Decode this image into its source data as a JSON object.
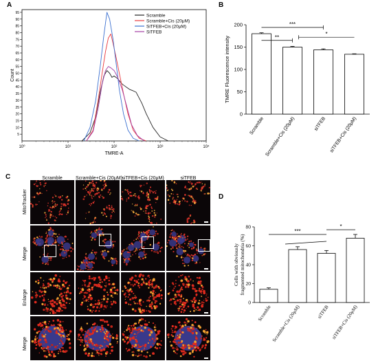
{
  "panels": {
    "A": "A",
    "B": "B",
    "C": "C",
    "D": "D"
  },
  "chart_data": [
    {
      "panel": "A",
      "type": "line",
      "xlabel": "TMRE-A",
      "ylabel": "Count",
      "xscale": "log",
      "xlim": [
        1,
        10000
      ],
      "ylim": [
        0,
        97
      ],
      "xticks": [
        "10⁰",
        "10¹",
        "10²",
        "10³",
        "10⁴"
      ],
      "yticks": [
        5,
        10,
        15,
        20,
        25,
        30,
        35,
        40,
        45,
        50,
        55,
        60,
        65,
        70,
        75,
        80,
        85,
        90,
        95
      ],
      "legend": "top-right",
      "series": [
        {
          "name": "Scramble",
          "color": "#222222",
          "x": [
            20,
            30,
            40,
            50,
            60,
            70,
            80,
            90,
            100,
            120,
            150,
            180,
            220,
            260,
            300,
            400,
            500,
            700,
            1000,
            1500
          ],
          "y": [
            0,
            6,
            18,
            36,
            48,
            52,
            50,
            47,
            48,
            46,
            42,
            40,
            38,
            37,
            36,
            28,
            20,
            10,
            3,
            0
          ]
        },
        {
          "name": "Scramble+Cis (20μM)",
          "color": "#e8383d",
          "x": [
            25,
            35,
            45,
            55,
            65,
            75,
            85,
            95,
            110,
            130,
            160,
            200,
            260,
            350,
            500
          ],
          "y": [
            0,
            8,
            30,
            50,
            66,
            76,
            79,
            72,
            62,
            50,
            35,
            20,
            8,
            2,
            0
          ]
        },
        {
          "name": "SiTFEB+Cis (20μM)",
          "color": "#3a6fd0",
          "x": [
            22,
            30,
            40,
            50,
            60,
            70,
            80,
            95,
            110,
            130,
            160,
            200,
            260,
            350
          ],
          "y": [
            0,
            10,
            30,
            55,
            78,
            95,
            90,
            75,
            58,
            38,
            20,
            8,
            2,
            0
          ]
        },
        {
          "name": "SiTFEB",
          "color": "#a23ca3",
          "x": [
            25,
            35,
            45,
            55,
            65,
            75,
            85,
            100,
            120,
            150,
            190,
            240,
            320,
            450
          ],
          "y": [
            0,
            7,
            24,
            42,
            52,
            55,
            54,
            52,
            47,
            38,
            25,
            12,
            4,
            0
          ]
        }
      ]
    },
    {
      "panel": "B",
      "type": "bar",
      "ylabel": "TMRE Fluorescence intensity",
      "ylim": [
        0,
        200
      ],
      "yticks": [
        0,
        50,
        100,
        150,
        200
      ],
      "categories": [
        "Scramble",
        "Scramble+Cis (20μM)",
        "siTFEB",
        "siTFEB+Cis (20μM)"
      ],
      "values": [
        180,
        150,
        144,
        134
      ],
      "errors": [
        2,
        1.5,
        2,
        1
      ],
      "annotations": [
        "***",
        "**",
        "*"
      ]
    },
    {
      "panel": "D",
      "type": "bar",
      "ylabel_lines": [
        "Cells with obviously",
        "fragmented mitochondria (%)"
      ],
      "ylim": [
        0,
        80
      ],
      "yticks": [
        0,
        20,
        40,
        60,
        80
      ],
      "categories": [
        "Scramble",
        "Scramble+Cis (20μM)",
        "siTFEB",
        "siTFEB+Cis (20μM)"
      ],
      "values": [
        14,
        56,
        52,
        68
      ],
      "errors": [
        1.5,
        3,
        3,
        4
      ],
      "annotations": [
        "***",
        "*"
      ]
    }
  ],
  "micrographs": {
    "columns": [
      "Scramble",
      "Scramble+Cis (20μM)",
      "siTFEB+Cis (20μM)",
      "siTFEB"
    ],
    "rows": [
      "MitoTracker",
      "Merge",
      "Enlarge",
      "Merge"
    ]
  }
}
